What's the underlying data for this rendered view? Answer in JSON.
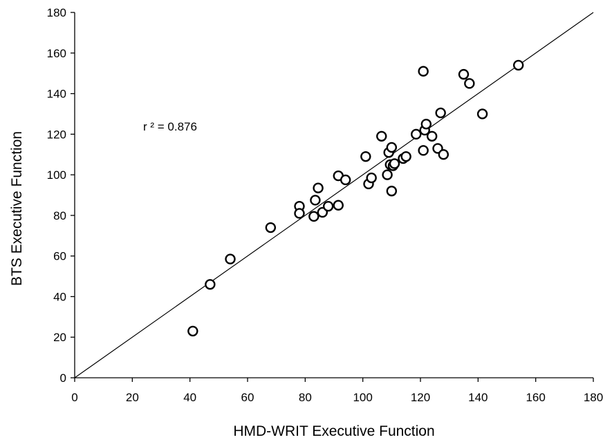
{
  "chart_data": {
    "type": "scatter",
    "title": "",
    "xlabel": "HMD-WRIT Executive Function",
    "ylabel": "BTS Executive Function",
    "xlim": [
      0,
      180
    ],
    "ylim": [
      0,
      180
    ],
    "xticks": [
      0,
      20,
      40,
      60,
      80,
      100,
      120,
      140,
      160,
      180
    ],
    "yticks": [
      0,
      20,
      40,
      60,
      80,
      100,
      120,
      140,
      160,
      180
    ],
    "grid": false,
    "annotation": "r ² = 0.876",
    "fit_line": {
      "x": [
        0,
        180
      ],
      "y": [
        0,
        180
      ]
    },
    "points": [
      {
        "x": 41,
        "y": 23
      },
      {
        "x": 47,
        "y": 46
      },
      {
        "x": 54,
        "y": 58.5
      },
      {
        "x": 68,
        "y": 74
      },
      {
        "x": 78,
        "y": 84.5
      },
      {
        "x": 78,
        "y": 81
      },
      {
        "x": 83,
        "y": 79.5
      },
      {
        "x": 83.5,
        "y": 87.5
      },
      {
        "x": 84.5,
        "y": 93.5
      },
      {
        "x": 86,
        "y": 81.5
      },
      {
        "x": 88,
        "y": 84.5
      },
      {
        "x": 91.5,
        "y": 85
      },
      {
        "x": 91.5,
        "y": 99.5
      },
      {
        "x": 94,
        "y": 97.5
      },
      {
        "x": 101,
        "y": 109
      },
      {
        "x": 102,
        "y": 95.5
      },
      {
        "x": 103,
        "y": 98.5
      },
      {
        "x": 106.5,
        "y": 119
      },
      {
        "x": 108.5,
        "y": 100
      },
      {
        "x": 109,
        "y": 111
      },
      {
        "x": 109.5,
        "y": 105
      },
      {
        "x": 110,
        "y": 92
      },
      {
        "x": 110,
        "y": 113.5
      },
      {
        "x": 110.5,
        "y": 104.5
      },
      {
        "x": 111,
        "y": 105.5
      },
      {
        "x": 114,
        "y": 108
      },
      {
        "x": 115,
        "y": 109
      },
      {
        "x": 118.5,
        "y": 120
      },
      {
        "x": 121,
        "y": 151
      },
      {
        "x": 121,
        "y": 112
      },
      {
        "x": 121.5,
        "y": 122
      },
      {
        "x": 122,
        "y": 125
      },
      {
        "x": 124,
        "y": 119
      },
      {
        "x": 126,
        "y": 113
      },
      {
        "x": 127,
        "y": 130.5
      },
      {
        "x": 128,
        "y": 110
      },
      {
        "x": 135,
        "y": 149.5
      },
      {
        "x": 137,
        "y": 145
      },
      {
        "x": 141.5,
        "y": 130
      },
      {
        "x": 154,
        "y": 154
      }
    ]
  }
}
